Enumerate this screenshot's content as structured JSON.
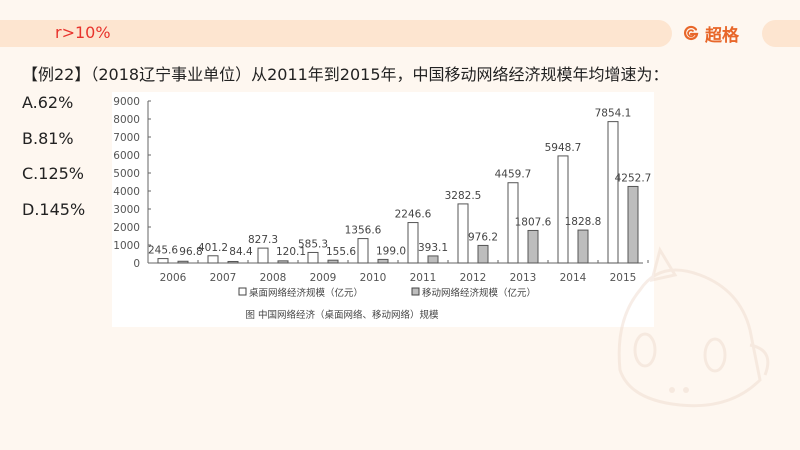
{
  "header": {
    "hint": "r>10%",
    "logo_text": "超格",
    "logo_icon": "brand-g-icon"
  },
  "question": {
    "text": "【例22】（2018辽宁事业单位）从2011年到2015年，中国移动网络经济规模年均增速为："
  },
  "options": [
    {
      "label": "A.62%"
    },
    {
      "label": "B.81%"
    },
    {
      "label": "C.125%"
    },
    {
      "label": "D.145%"
    }
  ],
  "colors": {
    "hint": "#e8332c",
    "brand": "#e8672a",
    "bar_band": "#fde5d0",
    "background": "#fef7f0",
    "desktop_bar_fill": "#ffffff",
    "mobile_bar_fill": "#bdbdbd",
    "bar_stroke": "#555555"
  },
  "chart_data": {
    "type": "bar",
    "title": "图  中国网络经济（桌面网络、移动网络）规模",
    "xlabel": "",
    "ylabel": "",
    "ylim": [
      0,
      9000
    ],
    "yticks": [
      0,
      1000,
      2000,
      3000,
      4000,
      5000,
      6000,
      7000,
      8000,
      9000
    ],
    "grid": false,
    "legend_position": "bottom",
    "categories": [
      "2006",
      "2007",
      "2008",
      "2009",
      "2010",
      "2011",
      "2012",
      "2013",
      "2014",
      "2015"
    ],
    "series": [
      {
        "name": "桌面网络经济规模（亿元）",
        "values": [
          245.6,
          401.2,
          827.3,
          585.3,
          1356.6,
          2246.6,
          3282.5,
          4459.7,
          5948.7,
          7854.1
        ],
        "labels": [
          "245.6",
          "401.2",
          "827.3",
          "585.3",
          "1356.6",
          "2246.6",
          "3282.5",
          "4459.7",
          "5948.7",
          "7854.1"
        ]
      },
      {
        "name": "移动网络经济规模（亿元）",
        "values": [
          96.8,
          84.4,
          120.1,
          155.6,
          199.0,
          393.1,
          976.2,
          1807.6,
          1828.8,
          4252.7
        ],
        "labels": [
          "96.8",
          "84.4",
          "120.1",
          "155.6",
          "199.0",
          "393.1",
          "976.2",
          "1807.6",
          "1828.8",
          "4252.7"
        ]
      }
    ]
  }
}
